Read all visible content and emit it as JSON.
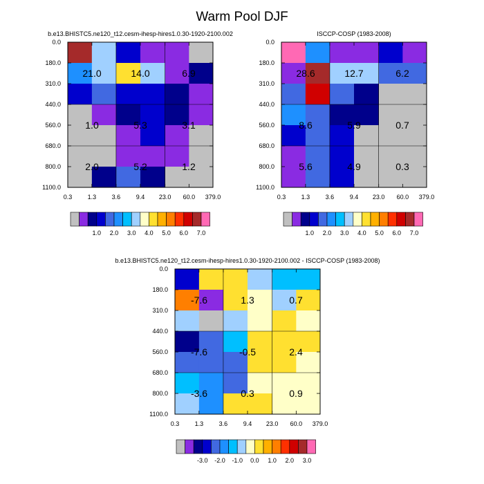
{
  "page_title": "Warm Pool DJF",
  "palette": {
    "missing": "#c0c0c0",
    "main": [
      "#c0c0c0",
      "#8a2be2",
      "#00008b",
      "#0000cd",
      "#4169e1",
      "#1e90ff",
      "#00bfff",
      "#a0d0ff",
      "#ffffc8",
      "#ffe030",
      "#ffb000",
      "#ff7f00",
      "#ff3000",
      "#d00000",
      "#a52a2a",
      "#ff69b4"
    ],
    "main_colorbar_labels": [
      "1.0",
      "2.0",
      "3.0",
      "4.0",
      "5.0",
      "6.0",
      "7.0"
    ],
    "diff": [
      "#c0c0c0",
      "#8a2be2",
      "#00008b",
      "#0000cd",
      "#4169e1",
      "#1e90ff",
      "#00bfff",
      "#a0d0ff",
      "#ffffc8",
      "#ffe030",
      "#ffb000",
      "#ff7f00",
      "#ff3000",
      "#d00000",
      "#a52a2a",
      "#ff69b4"
    ],
    "diff_colorbar_labels": [
      "-3.0",
      "-2.0",
      "-1.0",
      "0.0",
      "1.0",
      "2.0",
      "3.0"
    ]
  },
  "chart_data": [
    {
      "type": "heatmap",
      "title": "b.e13.BHISTC5.ne120_t12.cesm-ihesp-hires1.0.30-1920-2100.002",
      "x_tick_labels": [
        "0.3",
        "1.3",
        "3.6",
        "9.4",
        "23.0",
        "60.0",
        "379.0"
      ],
      "y_tick_labels": [
        "0.0",
        "180.0",
        "310.0",
        "440.0",
        "560.0",
        "680.0",
        "800.0",
        "1100.0"
      ],
      "color_index_grid": [
        [
          14,
          7,
          3,
          1,
          1,
          0
        ],
        [
          5,
          7,
          9,
          7,
          1,
          2
        ],
        [
          3,
          4,
          3,
          3,
          2,
          1
        ],
        [
          0,
          1,
          2,
          3,
          2,
          1
        ],
        [
          0,
          0,
          1,
          3,
          1,
          0
        ],
        [
          0,
          0,
          1,
          1,
          1,
          0
        ],
        [
          0,
          2,
          4,
          2,
          0,
          0
        ]
      ],
      "value_labels": [
        {
          "text": "21.0",
          "col": 0.5,
          "row": 1.5
        },
        {
          "text": "14.0",
          "col": 2.5,
          "row": 1.5
        },
        {
          "text": "6.9",
          "col": 4.5,
          "row": 1.5
        },
        {
          "text": "1.0",
          "col": 0.5,
          "row": 4.0
        },
        {
          "text": "5.3",
          "col": 2.5,
          "row": 4.0
        },
        {
          "text": "3.1",
          "col": 4.5,
          "row": 4.0
        },
        {
          "text": "2.0",
          "col": 0.5,
          "row": 6.0
        },
        {
          "text": "5.2",
          "col": 2.5,
          "row": 6.0
        },
        {
          "text": "1.2",
          "col": 4.5,
          "row": 6.0
        }
      ]
    },
    {
      "type": "heatmap",
      "title": "ISCCP-COSP (1983-2008)",
      "x_tick_labels": [
        "0.3",
        "1.3",
        "3.6",
        "9.4",
        "23.0",
        "60.0",
        "379.0"
      ],
      "y_tick_labels": [
        "0.0",
        "180.0",
        "310.0",
        "440.0",
        "560.0",
        "680.0",
        "800.0",
        "1100.0"
      ],
      "color_index_grid": [
        [
          15,
          5,
          1,
          1,
          3,
          1
        ],
        [
          1,
          14,
          7,
          7,
          4,
          4
        ],
        [
          4,
          13,
          4,
          2,
          0,
          0
        ],
        [
          5,
          4,
          2,
          2,
          0,
          0
        ],
        [
          3,
          4,
          3,
          0,
          0,
          0
        ],
        [
          1,
          4,
          3,
          0,
          0,
          0
        ],
        [
          1,
          4,
          3,
          0,
          0,
          0
        ]
      ],
      "value_labels": [
        {
          "text": "28.6",
          "col": 0.5,
          "row": 1.5
        },
        {
          "text": "12.7",
          "col": 2.5,
          "row": 1.5
        },
        {
          "text": "6.2",
          "col": 4.5,
          "row": 1.5
        },
        {
          "text": "8.6",
          "col": 0.5,
          "row": 4.0
        },
        {
          "text": "5.9",
          "col": 2.5,
          "row": 4.0
        },
        {
          "text": "0.7",
          "col": 4.5,
          "row": 4.0
        },
        {
          "text": "5.6",
          "col": 0.5,
          "row": 6.0
        },
        {
          "text": "4.9",
          "col": 2.5,
          "row": 6.0
        },
        {
          "text": "0.3",
          "col": 4.5,
          "row": 6.0
        }
      ]
    },
    {
      "type": "heatmap",
      "title": "b.e13.BHISTC5.ne120_t12.cesm-ihesp-hires1.0.30-1920-2100.002 - ISCCP-COSP (1983-2008)",
      "x_tick_labels": [
        "0.3",
        "1.3",
        "3.6",
        "9.4",
        "23.0",
        "60.0",
        "379.0"
      ],
      "y_tick_labels": [
        "0.0",
        "180.0",
        "310.0",
        "440.0",
        "560.0",
        "680.0",
        "800.0",
        "1100.0"
      ],
      "color_index_grid": [
        [
          3,
          9,
          9,
          7,
          6,
          6
        ],
        [
          11,
          1,
          9,
          8,
          7,
          9
        ],
        [
          7,
          0,
          7,
          8,
          9,
          8
        ],
        [
          2,
          4,
          6,
          9,
          9,
          9
        ],
        [
          4,
          4,
          4,
          9,
          9,
          8
        ],
        [
          6,
          5,
          4,
          8,
          8,
          8
        ],
        [
          7,
          5,
          9,
          9,
          8,
          8
        ]
      ],
      "value_labels": [
        {
          "text": "-7.6",
          "col": 0.5,
          "row": 1.5
        },
        {
          "text": "1.3",
          "col": 2.5,
          "row": 1.5
        },
        {
          "text": "0.7",
          "col": 4.5,
          "row": 1.5
        },
        {
          "text": "-7.6",
          "col": 0.5,
          "row": 4.0
        },
        {
          "text": "-0.5",
          "col": 2.5,
          "row": 4.0
        },
        {
          "text": "2.4",
          "col": 4.5,
          "row": 4.0
        },
        {
          "text": "-3.6",
          "col": 0.5,
          "row": 6.0
        },
        {
          "text": "0.3",
          "col": 2.5,
          "row": 6.0
        },
        {
          "text": "0.9",
          "col": 4.5,
          "row": 6.0
        }
      ]
    }
  ]
}
